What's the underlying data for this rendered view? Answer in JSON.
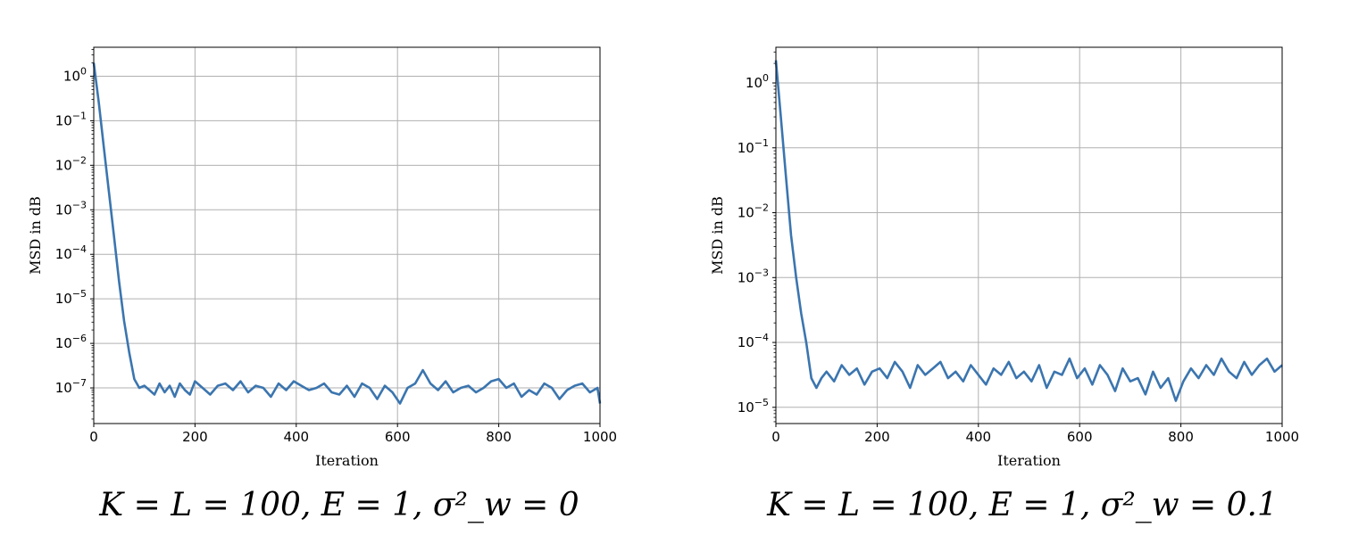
{
  "chart_data": [
    {
      "type": "line",
      "caption": "K = L = 100, E = 1, σ²_w = 0",
      "xlabel": "Iteration",
      "ylabel": "MSD in dB",
      "yscale": "log",
      "xlim": [
        0,
        1000
      ],
      "ylim_log10": [
        -7.8,
        0.65
      ],
      "xticks": [
        0,
        200,
        400,
        600,
        800,
        1000
      ],
      "yticks": [
        {
          "exp": 0,
          "label": "10",
          "sup": "0"
        },
        {
          "exp": -1,
          "label": "10",
          "sup": "−1"
        },
        {
          "exp": -2,
          "label": "10",
          "sup": "−2"
        },
        {
          "exp": -3,
          "label": "10",
          "sup": "−3"
        },
        {
          "exp": -4,
          "label": "10",
          "sup": "−4"
        },
        {
          "exp": -5,
          "label": "10",
          "sup": "−5"
        },
        {
          "exp": -6,
          "label": "10",
          "sup": "−6"
        },
        {
          "exp": -7,
          "label": "10",
          "sup": "−7"
        }
      ],
      "grid": true,
      "color": "#3b75af",
      "series": [
        {
          "x": [
            0,
            10,
            20,
            30,
            40,
            50,
            60,
            70,
            80,
            90,
            100,
            110,
            120,
            130,
            140,
            150,
            160,
            170,
            180,
            190,
            200,
            215,
            230,
            245,
            260,
            275,
            290,
            305,
            320,
            335,
            350,
            365,
            380,
            395,
            410,
            425,
            440,
            455,
            470,
            485,
            500,
            515,
            530,
            545,
            560,
            575,
            590,
            605,
            620,
            635,
            650,
            665,
            680,
            695,
            710,
            725,
            740,
            755,
            770,
            785,
            800,
            815,
            830,
            845,
            860,
            875,
            890,
            905,
            920,
            935,
            950,
            965,
            980,
            995,
            1000
          ],
          "y_log10": [
            0.3,
            -0.6,
            -1.6,
            -2.6,
            -3.6,
            -4.6,
            -5.5,
            -6.2,
            -6.8,
            -7.0,
            -6.95,
            -7.05,
            -7.15,
            -6.9,
            -7.1,
            -6.95,
            -7.2,
            -6.9,
            -7.05,
            -7.15,
            -6.85,
            -7.0,
            -7.15,
            -6.95,
            -6.9,
            -7.05,
            -6.85,
            -7.1,
            -6.95,
            -7.0,
            -7.2,
            -6.9,
            -7.05,
            -6.85,
            -6.95,
            -7.05,
            -7.0,
            -6.9,
            -7.1,
            -7.15,
            -6.95,
            -7.2,
            -6.9,
            -7.0,
            -7.25,
            -6.95,
            -7.1,
            -7.35,
            -7.0,
            -6.9,
            -6.6,
            -6.9,
            -7.05,
            -6.85,
            -7.1,
            -7.0,
            -6.95,
            -7.1,
            -7.0,
            -6.85,
            -6.8,
            -7.0,
            -6.9,
            -7.2,
            -7.05,
            -7.15,
            -6.9,
            -7.0,
            -7.25,
            -7.05,
            -6.95,
            -6.9,
            -7.1,
            -7.0,
            -7.35
          ]
        }
      ]
    },
    {
      "type": "line",
      "caption": "K = L = 100, E = 1, σ²_w = 0.1",
      "xlabel": "Iteration",
      "ylabel": "MSD in dB",
      "yscale": "log",
      "xlim": [
        0,
        1000
      ],
      "ylim_log10": [
        -5.25,
        0.55
      ],
      "xticks": [
        0,
        200,
        400,
        600,
        800,
        1000
      ],
      "yticks": [
        {
          "exp": 0,
          "label": "10",
          "sup": "0"
        },
        {
          "exp": -1,
          "label": "10",
          "sup": "−1"
        },
        {
          "exp": -2,
          "label": "10",
          "sup": "−2"
        },
        {
          "exp": -3,
          "label": "10",
          "sup": "−3"
        },
        {
          "exp": -4,
          "label": "10",
          "sup": "−4"
        },
        {
          "exp": -5,
          "label": "10",
          "sup": "−5"
        }
      ],
      "grid": true,
      "color": "#3b75af",
      "series": [
        {
          "x": [
            0,
            10,
            20,
            30,
            40,
            50,
            60,
            70,
            80,
            90,
            100,
            115,
            130,
            145,
            160,
            175,
            190,
            205,
            220,
            235,
            250,
            265,
            280,
            295,
            310,
            325,
            340,
            355,
            370,
            385,
            400,
            415,
            430,
            445,
            460,
            475,
            490,
            505,
            520,
            535,
            550,
            565,
            580,
            595,
            610,
            625,
            640,
            655,
            670,
            685,
            700,
            715,
            730,
            745,
            760,
            775,
            790,
            805,
            820,
            835,
            850,
            865,
            880,
            895,
            910,
            925,
            940,
            955,
            970,
            985,
            1000
          ],
          "y_log10": [
            0.35,
            -0.55,
            -1.45,
            -2.35,
            -3.0,
            -3.55,
            -4.0,
            -4.55,
            -4.7,
            -4.55,
            -4.45,
            -4.6,
            -4.35,
            -4.5,
            -4.4,
            -4.65,
            -4.45,
            -4.4,
            -4.55,
            -4.3,
            -4.45,
            -4.7,
            -4.35,
            -4.5,
            -4.4,
            -4.3,
            -4.55,
            -4.45,
            -4.6,
            -4.35,
            -4.5,
            -4.65,
            -4.4,
            -4.5,
            -4.3,
            -4.55,
            -4.45,
            -4.6,
            -4.35,
            -4.7,
            -4.45,
            -4.5,
            -4.25,
            -4.55,
            -4.4,
            -4.65,
            -4.35,
            -4.5,
            -4.75,
            -4.4,
            -4.6,
            -4.55,
            -4.8,
            -4.45,
            -4.7,
            -4.55,
            -4.9,
            -4.6,
            -4.4,
            -4.55,
            -4.35,
            -4.5,
            -4.25,
            -4.45,
            -4.55,
            -4.3,
            -4.5,
            -4.35,
            -4.25,
            -4.45,
            -4.35
          ]
        }
      ]
    }
  ]
}
